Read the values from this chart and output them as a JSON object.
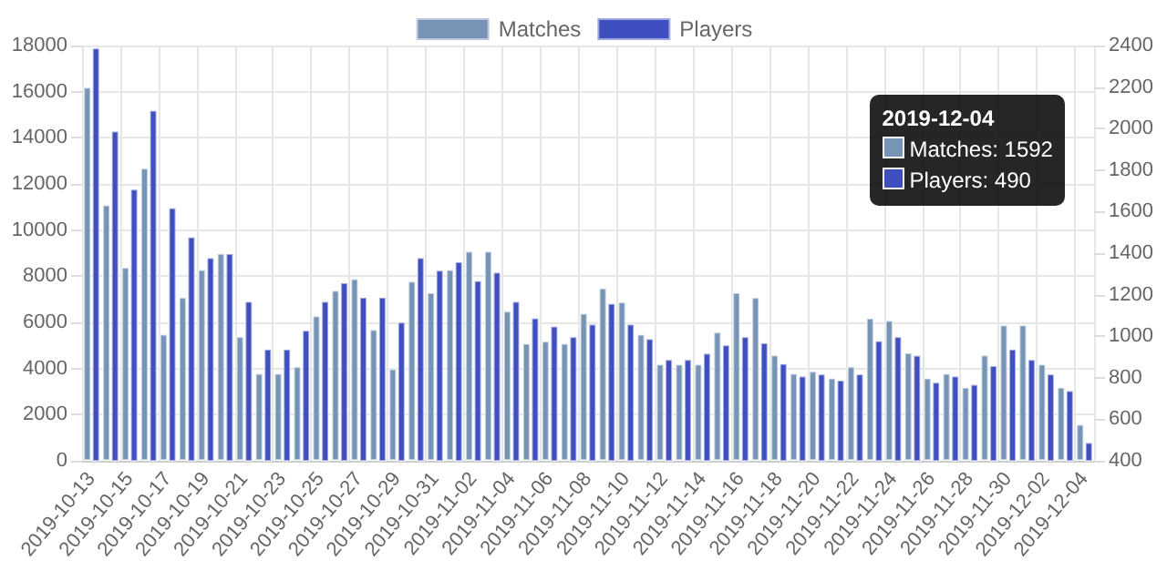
{
  "chart_data": {
    "type": "bar",
    "categories": [
      "2019-10-13",
      null,
      "2019-10-15",
      null,
      "2019-10-17",
      null,
      "2019-10-19",
      null,
      "2019-10-21",
      null,
      "2019-10-23",
      null,
      "2019-10-25",
      null,
      "2019-10-27",
      null,
      "2019-10-29",
      null,
      "2019-10-31",
      null,
      "2019-11-02",
      null,
      "2019-11-04",
      null,
      "2019-11-06",
      null,
      "2019-11-08",
      null,
      "2019-11-10",
      null,
      "2019-11-12",
      null,
      "2019-11-14",
      null,
      "2019-11-16",
      null,
      "2019-11-18",
      null,
      "2019-11-20",
      null,
      "2019-11-22",
      null,
      "2019-11-24",
      null,
      "2019-11-26",
      null,
      "2019-11-28",
      null,
      "2019-11-30",
      null,
      "2019-12-02",
      null,
      "2019-12-04"
    ],
    "series": [
      {
        "name": "Matches",
        "color": "#7694b6",
        "values": [
          16200,
          11100,
          8400,
          12700,
          5500,
          7100,
          8300,
          9000,
          5400,
          3800,
          3800,
          4100,
          6300,
          7400,
          7900,
          5700,
          4000,
          7800,
          7300,
          8300,
          9100,
          9100,
          6500,
          5100,
          5200,
          5100,
          6400,
          7500,
          6900,
          5500,
          4200,
          4200,
          4200,
          5600,
          7300,
          7100,
          4600,
          3800,
          3900,
          3600,
          4100,
          6200,
          6100,
          4700,
          3600,
          3800,
          3200,
          4600,
          5900,
          5900,
          4200,
          3200,
          1592
        ]
      },
      {
        "name": "Players",
        "color": "#3f4fbf",
        "axis": "y2",
        "values": [
          2390,
          1990,
          1710,
          2090,
          1620,
          1480,
          1380,
          1400,
          1170,
          940,
          940,
          1030,
          1170,
          1260,
          1190,
          1190,
          1070,
          1380,
          1320,
          1360,
          1270,
          1310,
          1170,
          1090,
          1050,
          1000,
          1060,
          1160,
          1060,
          990,
          890,
          890,
          920,
          960,
          1000,
          970,
          870,
          810,
          820,
          790,
          820,
          980,
          1000,
          910,
          780,
          810,
          770,
          860,
          940,
          890,
          820,
          740,
          490
        ]
      }
    ],
    "ylim": [
      0,
      18000
    ],
    "yticks": [
      0,
      2000,
      4000,
      6000,
      8000,
      10000,
      12000,
      14000,
      16000,
      18000
    ],
    "y2lim": [
      400,
      2400
    ],
    "y2ticks": [
      400,
      600,
      800,
      1000,
      1200,
      1400,
      1600,
      1800,
      2000,
      2200,
      2400
    ],
    "grid": true,
    "legend": "top",
    "annotations": [
      "2019-12-04",
      "Matches: 1592",
      "Players: 490"
    ]
  }
}
